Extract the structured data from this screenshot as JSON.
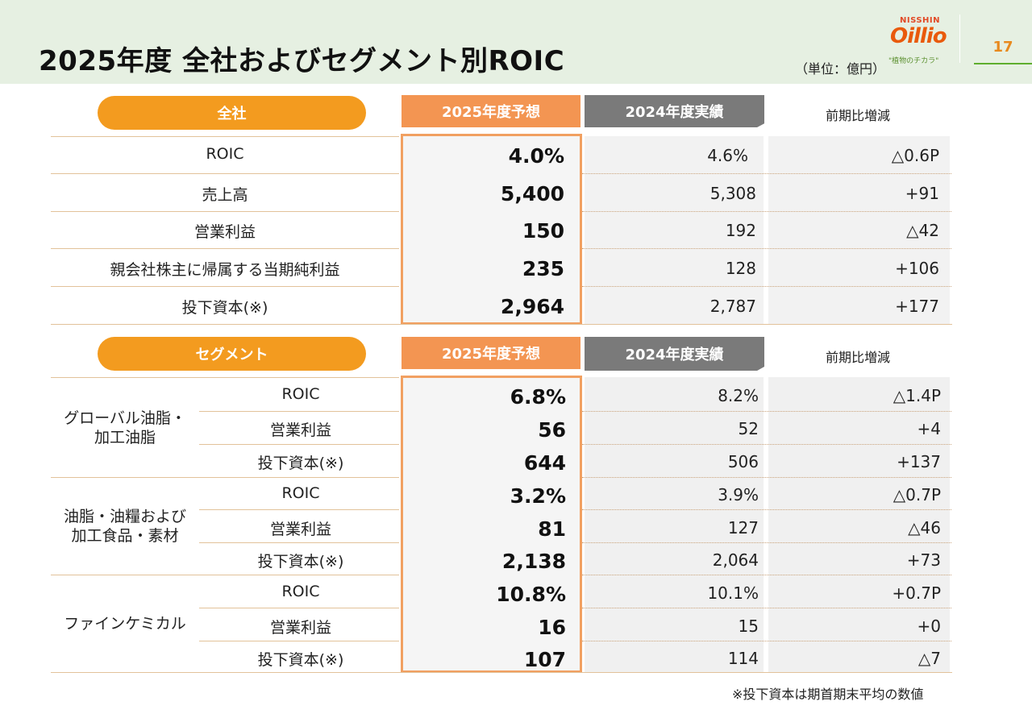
{
  "header": {
    "title": "2025年度 全社およびセグメント別ROIC",
    "unit": "（単位：億円）",
    "page_number": "17",
    "logo": {
      "brand": "NISSHIN",
      "mark": "Oillio",
      "tagline": "\"植物のチカラ\""
    }
  },
  "colors": {
    "accent_orange": "#f39b1f",
    "forecast_tab": "#f39552",
    "actual_tab": "#7a7a7a",
    "header_bg": "#e6f0e2"
  },
  "company": {
    "label": "全社",
    "col_forecast": "2025年度予想",
    "col_actual": "2024年度実績",
    "col_change": "前期比増減",
    "rows": [
      {
        "label": "ROIC",
        "forecast": "4.0%",
        "actual": "4.6%",
        "change": "△0.6P"
      },
      {
        "label": "売上高",
        "forecast": "5,400",
        "actual": "5,308",
        "change": "+91"
      },
      {
        "label": "営業利益",
        "forecast": "150",
        "actual": "192",
        "change": "△42"
      },
      {
        "label": "親会社株主に帰属する当期純利益",
        "forecast": "235",
        "actual": "128",
        "change": "+106"
      },
      {
        "label": "投下資本(※)",
        "forecast": "2,964",
        "actual": "2,787",
        "change": "+177"
      }
    ]
  },
  "segment": {
    "label": "セグメント",
    "col_forecast": "2025年度予想",
    "col_actual": "2024年度実績",
    "col_change": "前期比増減",
    "groups": [
      {
        "name": "グローバル油脂・\n加工油脂",
        "rows": [
          {
            "label": "ROIC",
            "forecast": "6.8%",
            "actual": "8.2%",
            "change": "△1.4P"
          },
          {
            "label": "営業利益",
            "forecast": "56",
            "actual": "52",
            "change": "+4"
          },
          {
            "label": "投下資本(※)",
            "forecast": "644",
            "actual": "506",
            "change": "+137"
          }
        ]
      },
      {
        "name": "油脂・油糧および\n加工食品・素材",
        "rows": [
          {
            "label": "ROIC",
            "forecast": "3.2%",
            "actual": "3.9%",
            "change": "△0.7P"
          },
          {
            "label": "営業利益",
            "forecast": "81",
            "actual": "127",
            "change": "△46"
          },
          {
            "label": "投下資本(※)",
            "forecast": "2,138",
            "actual": "2,064",
            "change": "+73"
          }
        ]
      },
      {
        "name": "ファインケミカル",
        "rows": [
          {
            "label": "ROIC",
            "forecast": "10.8%",
            "actual": "10.1%",
            "change": "+0.7P"
          },
          {
            "label": "営業利益",
            "forecast": "16",
            "actual": "15",
            "change": "+0"
          },
          {
            "label": "投下資本(※)",
            "forecast": "107",
            "actual": "114",
            "change": "△7"
          }
        ]
      }
    ]
  },
  "footnote": "※投下資本は期首期末平均の数値"
}
